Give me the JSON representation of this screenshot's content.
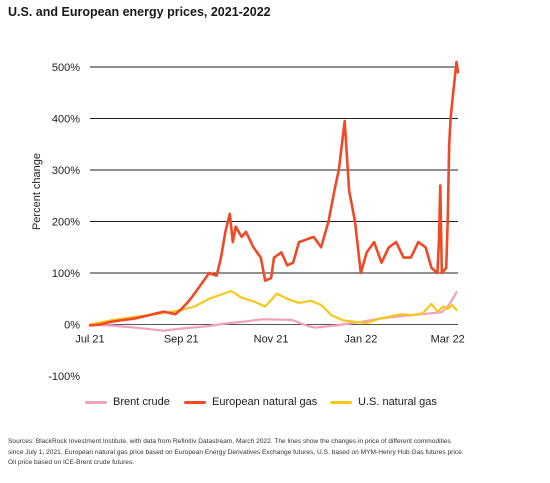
{
  "title": "U.S. and European energy prices, 2021-2022",
  "notes": [
    "Sources: BlackRock Investment Institute, with data from Refinitiv Datastream, March 2022. The lines show the changes in price of different commodities",
    "since July 1, 2021. European natural gas price based on European Energy Derivatives Exchange futures, U.S. based on MYM-Henry Hub Gas futures price.",
    "Oil price based on ICE-Brent crude futures."
  ],
  "chart_data": {
    "type": "line",
    "title": "U.S. and European energy prices, 2021-2022",
    "ylabel": "Percent change",
    "xlabel": "",
    "ylim": [
      -100,
      500
    ],
    "y_ticks": [
      -100,
      0,
      100,
      200,
      300,
      400,
      500
    ],
    "y_tick_labels": [
      "-100%",
      "0%",
      "100%",
      "200%",
      "300%",
      "400%",
      "500%"
    ],
    "x_ticks": [
      "2021-07-01",
      "2021-09-01",
      "2021-11-01",
      "2022-01-01",
      "2022-03-01"
    ],
    "x_tick_labels": [
      "Jul 21",
      "Sep 21",
      "Nov 21",
      "Jan 22",
      "Mar 22"
    ],
    "xlim": [
      "2021-07-01",
      "2022-03-08"
    ],
    "grid": "horizontal",
    "legend_position": "bottom",
    "series": [
      {
        "name": "Brent crude",
        "color": "#f2a0bf",
        "x": [
          "2021-07-01",
          "2021-07-15",
          "2021-08-01",
          "2021-08-20",
          "2021-09-01",
          "2021-09-20",
          "2021-10-01",
          "2021-10-15",
          "2021-10-25",
          "2021-11-01",
          "2021-11-15",
          "2021-11-26",
          "2021-12-01",
          "2021-12-15",
          "2022-01-01",
          "2022-01-15",
          "2022-02-01",
          "2022-02-15",
          "2022-02-25",
          "2022-03-01",
          "2022-03-04",
          "2022-03-07"
        ],
        "values": [
          0,
          -2,
          -6,
          -12,
          -8,
          -3,
          2,
          6,
          10,
          10,
          9,
          -3,
          -6,
          -2,
          5,
          12,
          17,
          21,
          24,
          35,
          48,
          63
        ]
      },
      {
        "name": "European natural gas",
        "color": "#ef4a26",
        "x": [
          "2021-07-01",
          "2021-07-08",
          "2021-07-15",
          "2021-07-22",
          "2021-08-01",
          "2021-08-10",
          "2021-08-20",
          "2021-08-28",
          "2021-09-01",
          "2021-09-06",
          "2021-09-10",
          "2021-09-15",
          "2021-09-20",
          "2021-09-25",
          "2021-09-28",
          "2021-10-01",
          "2021-10-04",
          "2021-10-06",
          "2021-10-08",
          "2021-10-12",
          "2021-10-15",
          "2021-10-20",
          "2021-10-25",
          "2021-10-28",
          "2021-11-01",
          "2021-11-03",
          "2021-11-08",
          "2021-11-12",
          "2021-11-16",
          "2021-11-20",
          "2021-11-25",
          "2021-11-30",
          "2021-12-05",
          "2021-12-10",
          "2021-12-14",
          "2021-12-17",
          "2021-12-21",
          "2021-12-24",
          "2021-12-28",
          "2022-01-01",
          "2022-01-05",
          "2022-01-10",
          "2022-01-15",
          "2022-01-20",
          "2022-01-25",
          "2022-01-30",
          "2022-02-04",
          "2022-02-09",
          "2022-02-14",
          "2022-02-18",
          "2022-02-22",
          "2022-02-23",
          "2022-02-24",
          "2022-02-25",
          "2022-02-28",
          "2022-03-01",
          "2022-03-02",
          "2022-03-03",
          "2022-03-04",
          "2022-03-07",
          "2022-03-08"
        ],
        "values": [
          -2,
          0,
          5,
          8,
          12,
          18,
          25,
          20,
          30,
          45,
          60,
          80,
          100,
          95,
          130,
          180,
          215,
          160,
          190,
          170,
          180,
          150,
          130,
          85,
          90,
          130,
          140,
          115,
          120,
          160,
          165,
          170,
          150,
          200,
          260,
          300,
          395,
          260,
          200,
          100,
          140,
          160,
          120,
          150,
          160,
          130,
          130,
          160,
          150,
          110,
          100,
          160,
          270,
          100,
          110,
          200,
          350,
          400,
          430,
          510,
          490
        ]
      },
      {
        "name": "U.S. natural gas",
        "color": "#f5c81a",
        "x": [
          "2021-07-01",
          "2021-07-15",
          "2021-08-01",
          "2021-08-15",
          "2021-09-01",
          "2021-09-10",
          "2021-09-20",
          "2021-09-28",
          "2021-10-05",
          "2021-10-12",
          "2021-10-20",
          "2021-10-28",
          "2021-11-05",
          "2021-11-12",
          "2021-11-20",
          "2021-11-28",
          "2021-12-05",
          "2021-12-12",
          "2021-12-20",
          "2021-12-28",
          "2022-01-05",
          "2022-01-12",
          "2022-01-20",
          "2022-01-28",
          "2022-02-05",
          "2022-02-12",
          "2022-02-18",
          "2022-02-22",
          "2022-02-26",
          "2022-03-01",
          "2022-03-04",
          "2022-03-07"
        ],
        "values": [
          0,
          8,
          15,
          20,
          28,
          35,
          50,
          58,
          65,
          52,
          45,
          35,
          60,
          50,
          42,
          46,
          38,
          18,
          8,
          5,
          3,
          10,
          15,
          20,
          18,
          22,
          40,
          25,
          35,
          30,
          38,
          28
        ]
      }
    ]
  }
}
